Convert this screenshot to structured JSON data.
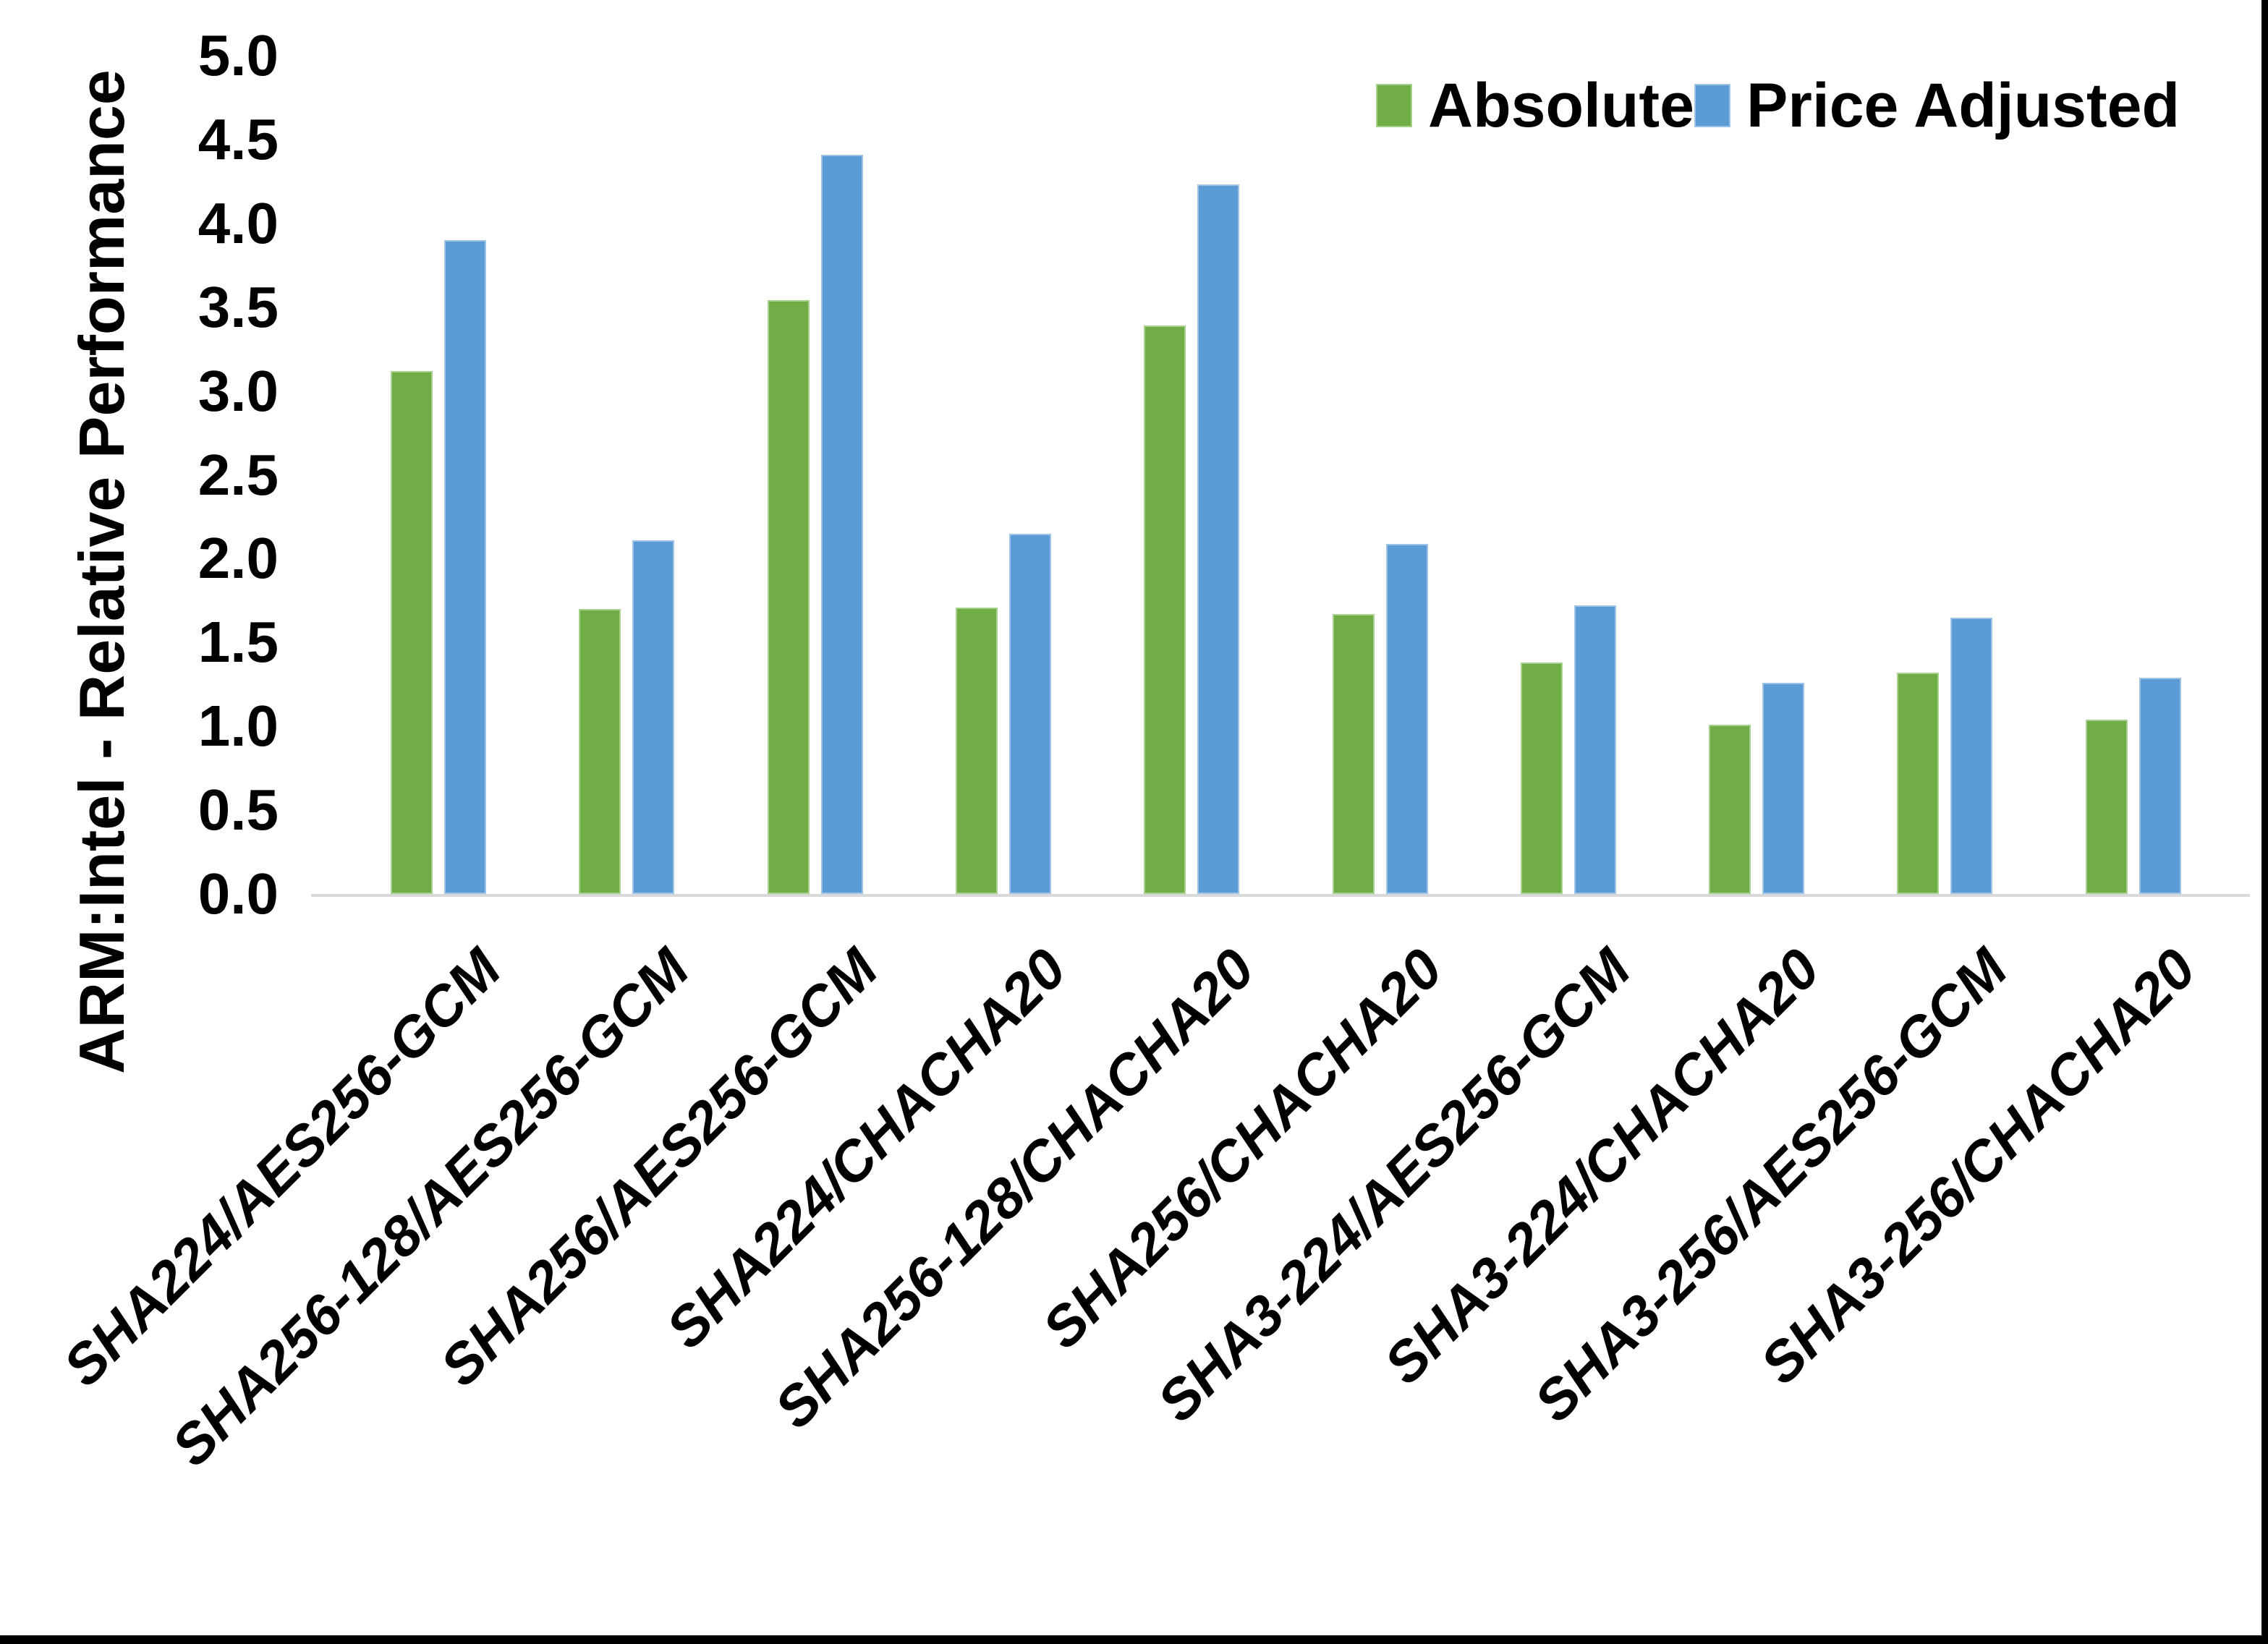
{
  "chart_data": {
    "type": "bar",
    "title": "",
    "xlabel": "",
    "ylabel": "ARM:Intel - Relative Performance",
    "ylim": [
      0.0,
      5.0
    ],
    "ytick_step": 0.5,
    "ytick_labels": [
      "0.0",
      "0.5",
      "1.0",
      "1.5",
      "2.0",
      "2.5",
      "3.0",
      "3.5",
      "4.0",
      "4.5",
      "5.0"
    ],
    "grid": false,
    "legend_position": "top-right",
    "categories": [
      "SHA224/AES256-GCM",
      "SHA256-128/AES256-GCM",
      "SHA256/AES256-GCM",
      "SHA224/CHACHA20",
      "SHA256-128/CHACHA20",
      "SHA256/CHACHA20",
      "SHA3-224/AES256-GCM",
      "SHA3-224/CHACHA20",
      "SHA3-256/AES256-GCM",
      "SHA3-256/CHACHA20"
    ],
    "series": [
      {
        "name": "Absolute",
        "color": "#70AD47",
        "edge_color": "#a9d18e",
        "values": [
          3.12,
          1.7,
          3.54,
          1.71,
          3.39,
          1.67,
          1.38,
          1.01,
          1.32,
          1.04
        ]
      },
      {
        "name": "Price Adjusted",
        "color": "#5B9BD5",
        "edge_color": "#9dc3e6",
        "values": [
          3.9,
          2.11,
          4.41,
          2.15,
          4.23,
          2.09,
          1.72,
          1.26,
          1.65,
          1.29
        ]
      }
    ],
    "axis_line_color": "#d9d9d9",
    "text_color": "#000000"
  }
}
